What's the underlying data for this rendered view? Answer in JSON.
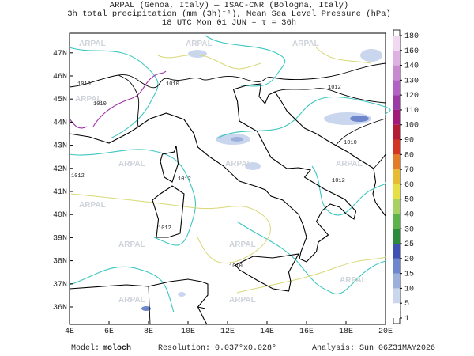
{
  "header": {
    "line1": "ARPAL (Genoa, Italy)  —  ISAC-CNR (Bologna, Italy)",
    "line2": "3h total precipitation (mm (3h)⁻¹), Mean Sea Level Pressure (hPa)",
    "line3": "18 UTC Mon 01 JUN  –  τ = 36h"
  },
  "map": {
    "lat_labels": [
      "36N",
      "37N",
      "38N",
      "39N",
      "40N",
      "41N",
      "42N",
      "43N",
      "44N",
      "45N",
      "46N",
      "47N"
    ],
    "lon_labels": [
      "4E",
      "6E",
      "8E",
      "10E",
      "12E",
      "14E",
      "16E",
      "18E",
      "20E"
    ],
    "watermark": "ARPAL",
    "contour_labels": [
      "1010",
      "1012"
    ]
  },
  "colorbar": {
    "levels": [
      1,
      5,
      10,
      15,
      20,
      25,
      30,
      40,
      50,
      60,
      70,
      80,
      90,
      100,
      110,
      120,
      130,
      140,
      160,
      180
    ],
    "colors": [
      "#ffffff",
      "#c9d6ee",
      "#9db0dc",
      "#6d86cc",
      "#3f52b2",
      "#2c8a3c",
      "#5db24c",
      "#a9d062",
      "#e6e044",
      "#e8bc32",
      "#e27c2a",
      "#d23522",
      "#b41c34",
      "#a11a7a",
      "#9a3aa2",
      "#b262c2",
      "#c98ad2",
      "#ddb2e2",
      "#f1daf1"
    ]
  },
  "footer": {
    "model_label": "Model:",
    "model": "moloch",
    "resolution_label": "Resolution:",
    "resolution": "0.037°x0.028°",
    "analysis_label": "Analysis:",
    "analysis": "Sun 06Z31MAY2026"
  }
}
